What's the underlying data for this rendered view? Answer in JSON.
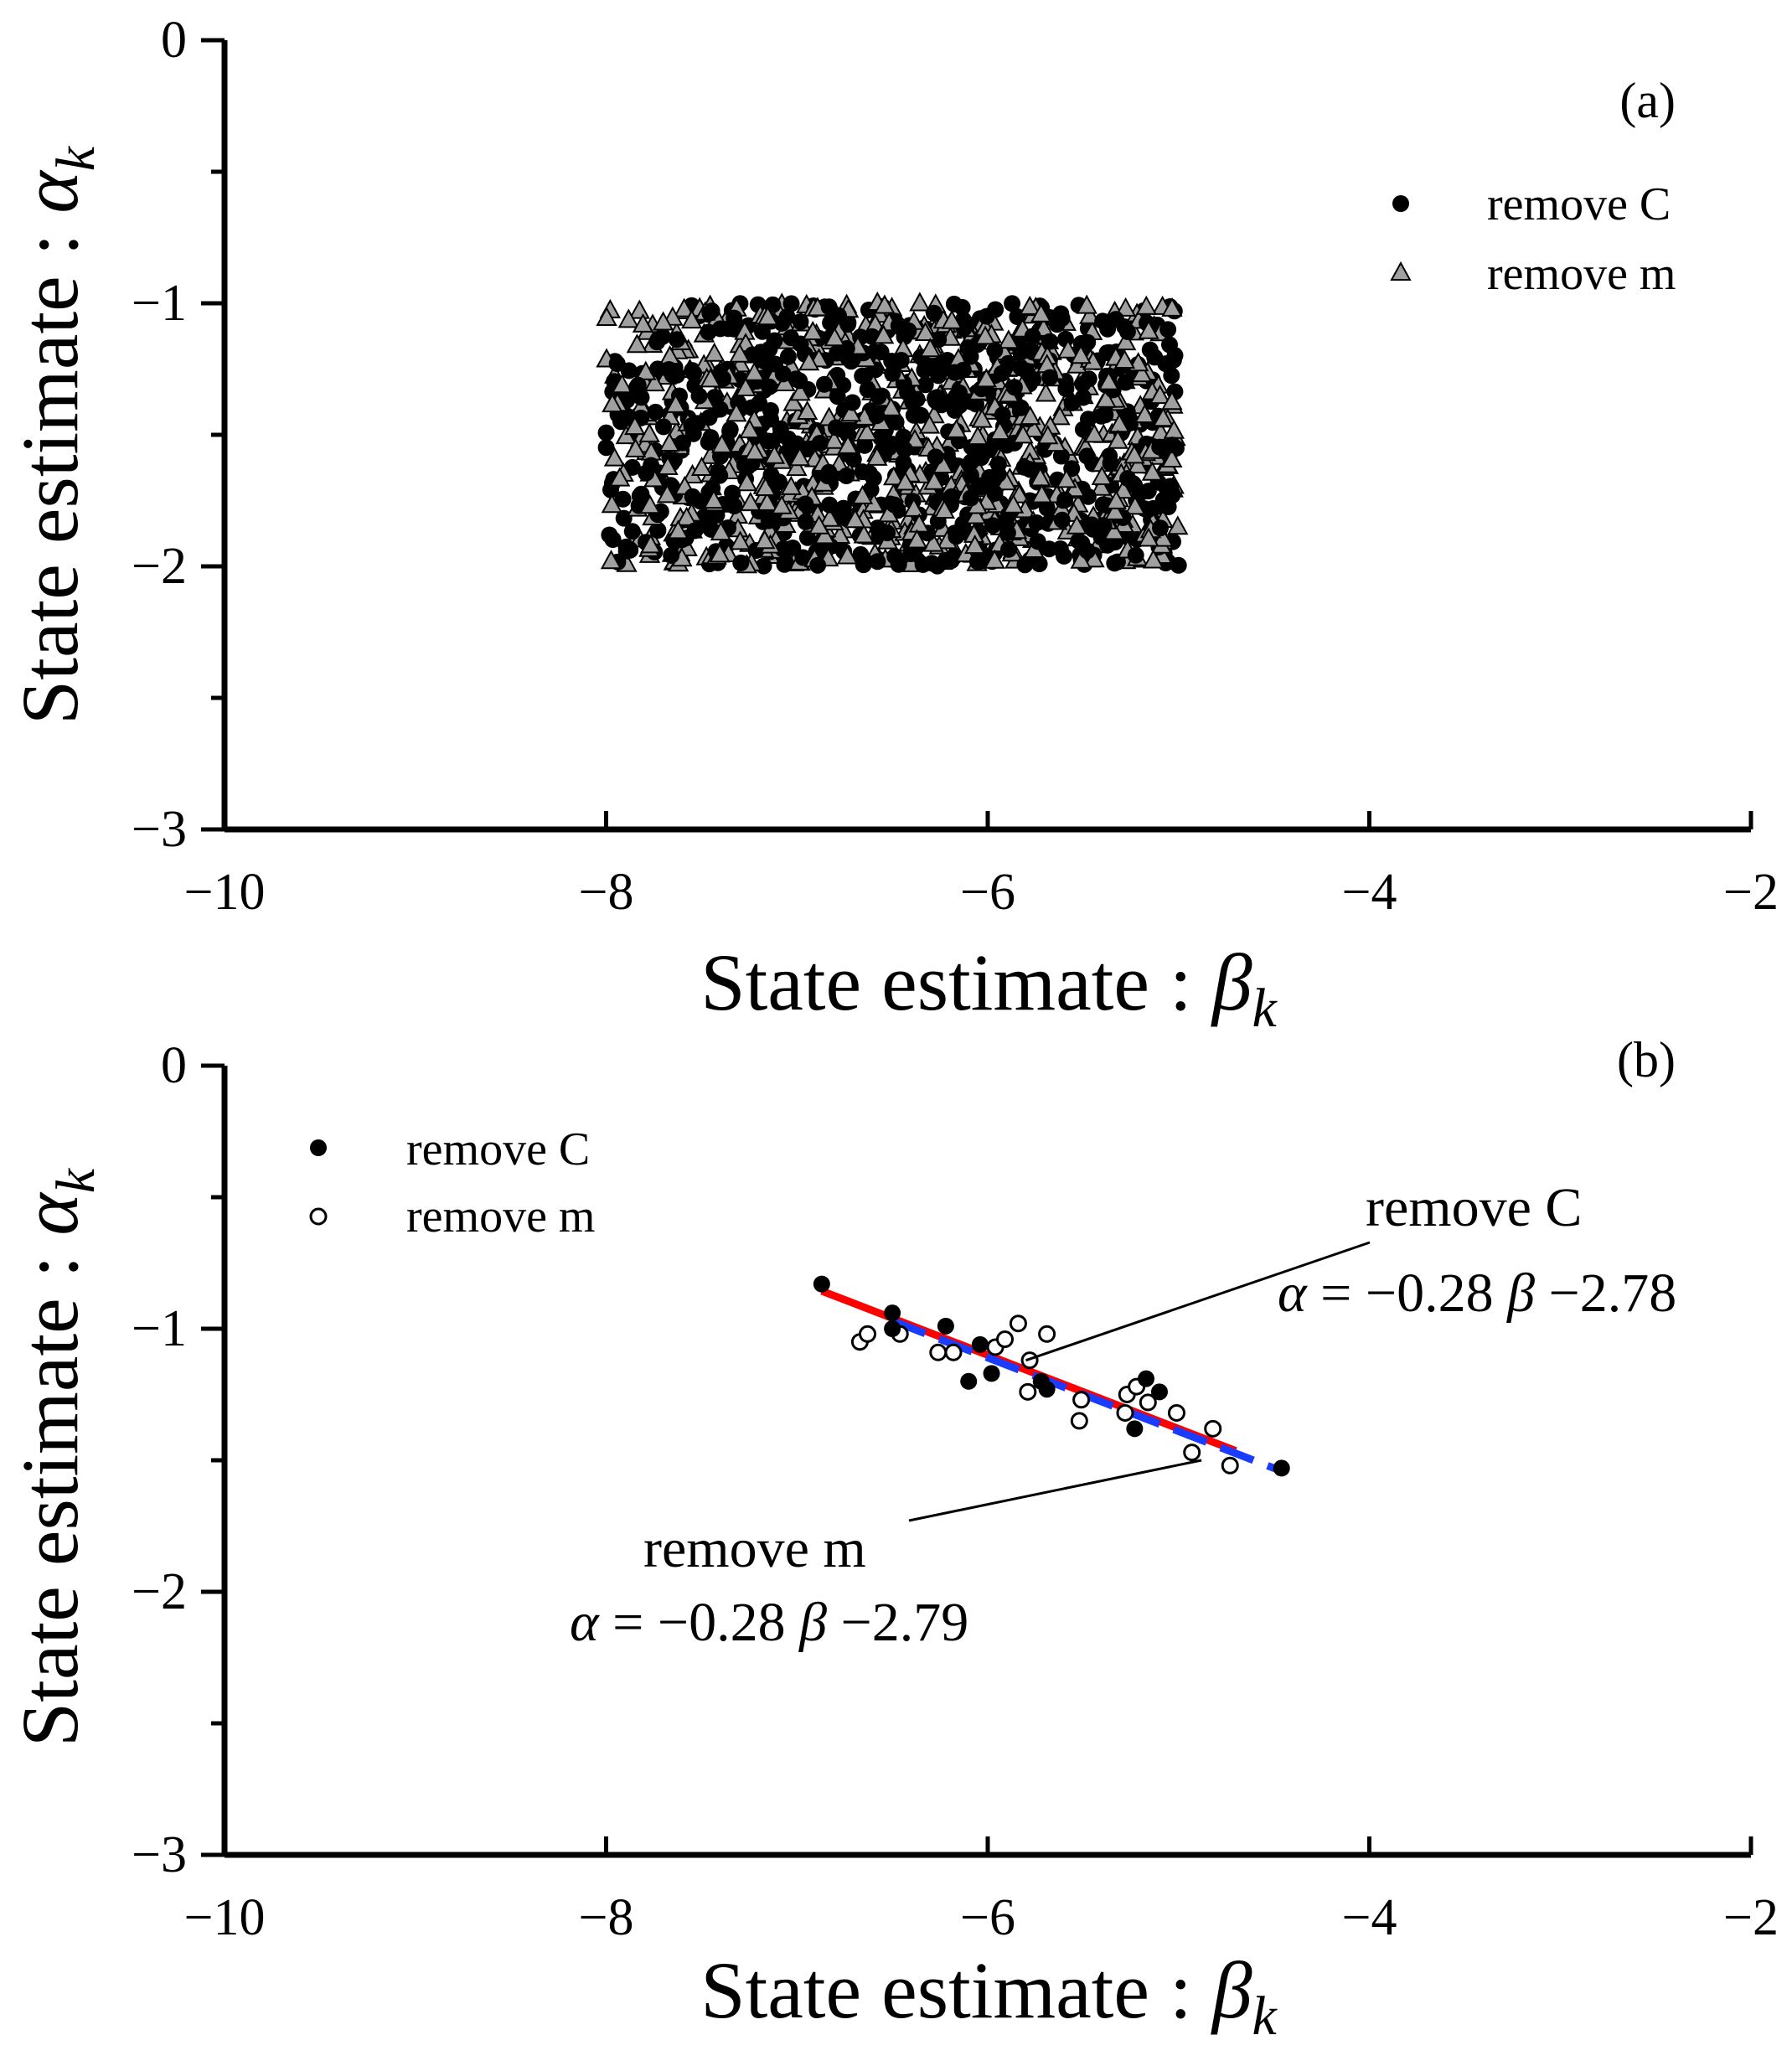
{
  "chart_data": [
    {
      "panel_label": "(a)",
      "type": "scatter",
      "xlabel": "State estimate : βk",
      "xlabel_main": "State estimate : ",
      "xlabel_symbol": "β",
      "xlabel_sub": "k",
      "ylabel": "State estimate : αk",
      "ylabel_main": "State estimate : ",
      "ylabel_symbol": "α",
      "ylabel_sub": "k",
      "xlim": [
        -10,
        -2
      ],
      "ylim": [
        -3,
        0
      ],
      "xticks": [
        -10,
        -8,
        -6,
        -4,
        -2
      ],
      "xtick_labels": [
        "−10",
        "−8",
        "−6",
        "−4",
        "−2"
      ],
      "yticks": [
        0,
        -1,
        -2,
        -3
      ],
      "ytick_labels": [
        "0",
        "−1",
        "−2",
        "−3"
      ],
      "legend_position": "top-right",
      "series": [
        {
          "name": "remove C",
          "marker": "filled-circle",
          "color": "#000000",
          "x_range": [
            -8,
            -5
          ],
          "y_range": [
            -2,
            -1
          ],
          "count": 700,
          "description_note": "uniformly scattered cloud"
        },
        {
          "name": "remove m",
          "marker": "gray-triangle",
          "color": "#a0a0a0",
          "x_range": [
            -8,
            -5
          ],
          "y_range": [
            -2,
            -1
          ],
          "count": 700
        }
      ]
    },
    {
      "panel_label": "(b)",
      "type": "scatter",
      "xlabel": "State estimate : βk",
      "xlabel_main": "State estimate : ",
      "xlabel_symbol": "β",
      "xlabel_sub": "k",
      "ylabel": "State estimate : αk",
      "ylabel_main": "State estimate : ",
      "ylabel_symbol": "α",
      "ylabel_sub": "k",
      "xlim": [
        -10,
        -2
      ],
      "ylim": [
        -3,
        0
      ],
      "xticks": [
        -10,
        -8,
        -6,
        -4,
        -2
      ],
      "xtick_labels": [
        "−10",
        "−8",
        "−6",
        "−4",
        "−2"
      ],
      "yticks": [
        0,
        -1,
        -2,
        -3
      ],
      "ytick_labels": [
        "0",
        "−1",
        "−2",
        "−3"
      ],
      "legend_position": "top-left",
      "series": [
        {
          "name": "remove C",
          "marker": "filled-circle",
          "color": "#000000",
          "points": [
            [
              -6.87,
              -0.83
            ],
            [
              -6.5,
              -1.0
            ],
            [
              -6.5,
              -0.94
            ],
            [
              -6.22,
              -0.99
            ],
            [
              -6.04,
              -1.06
            ],
            [
              -6.1,
              -1.2
            ],
            [
              -5.98,
              -1.17
            ],
            [
              -5.72,
              -1.2
            ],
            [
              -5.69,
              -1.23
            ],
            [
              -5.17,
              -1.19
            ],
            [
              -5.1,
              -1.24
            ],
            [
              -5.23,
              -1.38
            ],
            [
              -4.46,
              -1.53
            ]
          ]
        },
        {
          "name": "remove m",
          "marker": "open-circle",
          "color": "#000000",
          "points": [
            [
              -6.67,
              -1.05
            ],
            [
              -6.63,
              -1.02
            ],
            [
              -6.46,
              -1.02
            ],
            [
              -6.26,
              -1.09
            ],
            [
              -6.18,
              -1.09
            ],
            [
              -5.96,
              -1.07
            ],
            [
              -5.91,
              -1.04
            ],
            [
              -5.84,
              -0.98
            ],
            [
              -5.78,
              -1.12
            ],
            [
              -5.79,
              -1.24
            ],
            [
              -5.69,
              -1.02
            ],
            [
              -5.51,
              -1.27
            ],
            [
              -5.52,
              -1.35
            ],
            [
              -5.27,
              -1.25
            ],
            [
              -5.22,
              -1.22
            ],
            [
              -5.16,
              -1.28
            ],
            [
              -5.28,
              -1.32
            ],
            [
              -5.01,
              -1.32
            ],
            [
              -4.82,
              -1.38
            ],
            [
              -4.93,
              -1.47
            ],
            [
              -4.73,
              -1.52
            ]
          ]
        }
      ],
      "fits": [
        {
          "name": "remove C",
          "color": "#ff0000",
          "style": "solid",
          "slope": -0.28,
          "intercept": -2.78,
          "x_range": [
            -6.87,
            -4.7
          ],
          "label": "remove C",
          "equation_lhs": "α",
          "equation_mid": " = −0.28 ",
          "equation_beta": "β",
          "equation_rhs": " −2.78",
          "annotation_pointer_x": -5.8,
          "annotation_pointer_y": -1.12
        },
        {
          "name": "remove m",
          "color": "#1a3cff",
          "style": "dashed",
          "slope": -0.28,
          "intercept": -2.79,
          "x_range": [
            -6.5,
            -4.46
          ],
          "label": "remove m",
          "equation_lhs": "α",
          "equation_mid": " = −0.28 ",
          "equation_beta": "β",
          "equation_rhs": " −2.79",
          "annotation_pointer_x": -4.88,
          "annotation_pointer_y": -1.5
        }
      ]
    }
  ]
}
